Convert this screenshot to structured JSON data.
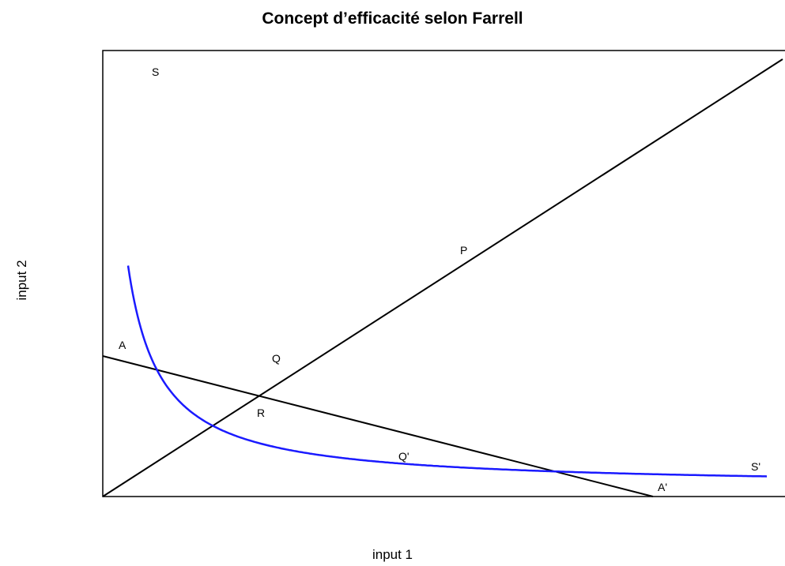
{
  "title": "Concept d’efficacité selon Farrell",
  "xlabel": "input 1",
  "ylabel": "input 2",
  "colors": {
    "isoquant": "#1a1aff",
    "lines": "#000000",
    "frame": "#000000"
  },
  "isoquant": {
    "start_label": "S",
    "end_label": "S'"
  },
  "budget_line": {
    "start_label": "A",
    "end_label": "A'"
  },
  "ray": {
    "label": "P"
  },
  "points": {
    "q": "Q",
    "q_prime": "Q'",
    "r": "R"
  }
}
